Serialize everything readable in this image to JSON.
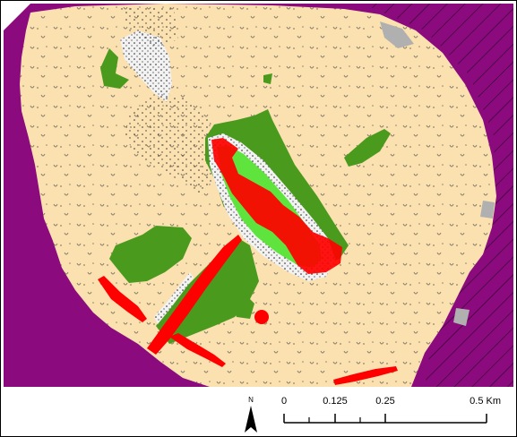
{
  "north_arrow": {
    "label": "N"
  },
  "scale_bar": {
    "unit": "Km",
    "ticks": [
      {
        "value": 0,
        "label": "0"
      },
      {
        "value": 0.125,
        "label": "0.125"
      },
      {
        "value": 0.25,
        "label": "0.25"
      },
      {
        "value": 0.5,
        "label": "0.5 Km"
      }
    ]
  },
  "colors": {
    "outer_region": "#8b0a7d",
    "hatch": "#2b0a2a",
    "base_land": "#fbe1b0",
    "vegetation_dark": "#4a9a1d",
    "vegetation_light": "#5ee43c",
    "red_patch": "#ff0000",
    "stipple_area": "#f0f0f0",
    "gray_patch": "#b0b0b0"
  }
}
